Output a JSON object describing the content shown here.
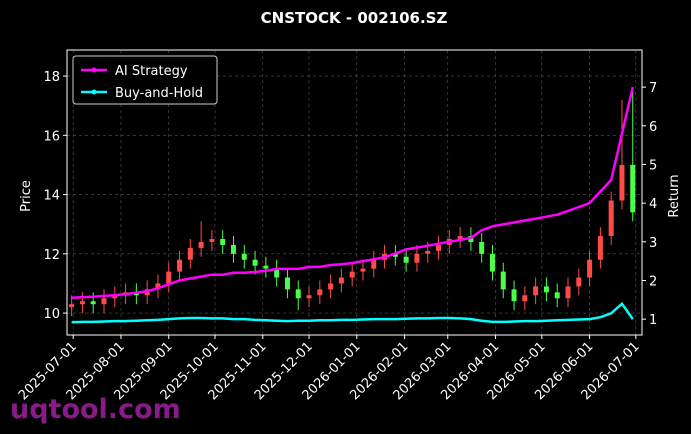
{
  "chart_data": {
    "type": "candlestick",
    "title": "CNSTOCK - 002106.SZ",
    "ylabel": "Price",
    "y2label": "Return",
    "watermark": "uqtool.com",
    "x": [
      "2025-06-30",
      "2025-07-07",
      "2025-07-14",
      "2025-07-21",
      "2025-07-28",
      "2025-08-04",
      "2025-08-11",
      "2025-08-18",
      "2025-08-25",
      "2025-09-01",
      "2025-09-08",
      "2025-09-15",
      "2025-09-22",
      "2025-09-29",
      "2025-10-06",
      "2025-10-13",
      "2025-10-20",
      "2025-10-27",
      "2025-11-03",
      "2025-11-10",
      "2025-11-17",
      "2025-11-24",
      "2025-12-01",
      "2025-12-08",
      "2025-12-15",
      "2025-12-22",
      "2025-12-29",
      "2026-01-05",
      "2026-01-12",
      "2026-01-19",
      "2026-01-26",
      "2026-02-02",
      "2026-02-09",
      "2026-02-16",
      "2026-02-23",
      "2026-03-02",
      "2026-03-09",
      "2026-03-16",
      "2026-03-23",
      "2026-03-30",
      "2026-04-06",
      "2026-04-13",
      "2026-04-20",
      "2026-04-27",
      "2026-05-04",
      "2026-05-11",
      "2026-05-18",
      "2026-05-25",
      "2026-06-01",
      "2026-06-08",
      "2026-06-15",
      "2026-06-22",
      "2026-06-29"
    ],
    "open": [
      10.2,
      10.3,
      10.4,
      10.3,
      10.5,
      10.6,
      10.7,
      10.6,
      10.8,
      11.0,
      11.4,
      11.8,
      12.2,
      12.4,
      12.5,
      12.3,
      12.0,
      11.8,
      11.6,
      11.5,
      11.2,
      10.8,
      10.5,
      10.6,
      10.8,
      11.0,
      11.2,
      11.4,
      11.5,
      11.8,
      12.0,
      11.9,
      11.7,
      12.0,
      12.1,
      12.3,
      12.5,
      12.6,
      12.4,
      12.0,
      11.4,
      10.8,
      10.4,
      10.6,
      10.9,
      10.7,
      10.5,
      10.9,
      11.2,
      11.8,
      12.6,
      13.8,
      15.0
    ],
    "high": [
      10.6,
      10.7,
      10.7,
      10.8,
      10.9,
      11.0,
      11.0,
      11.1,
      11.3,
      11.7,
      12.1,
      12.5,
      13.1,
      12.8,
      12.8,
      12.6,
      12.3,
      12.1,
      11.9,
      11.8,
      11.5,
      11.1,
      10.9,
      11.1,
      11.3,
      11.5,
      11.7,
      11.8,
      12.1,
      12.3,
      12.3,
      12.2,
      12.3,
      12.4,
      12.6,
      12.8,
      12.9,
      12.9,
      12.7,
      12.3,
      11.7,
      11.1,
      10.9,
      11.2,
      11.2,
      11.0,
      11.2,
      11.5,
      12.1,
      12.9,
      14.1,
      17.2,
      17.5
    ],
    "low": [
      9.9,
      10.0,
      10.0,
      10.0,
      10.2,
      10.3,
      10.3,
      10.3,
      10.5,
      10.7,
      11.1,
      11.5,
      11.9,
      12.1,
      12.0,
      11.7,
      11.5,
      11.3,
      11.2,
      10.9,
      10.5,
      10.1,
      10.2,
      10.3,
      10.5,
      10.7,
      10.9,
      11.1,
      11.2,
      11.5,
      11.6,
      11.4,
      11.4,
      11.7,
      11.8,
      12.0,
      12.2,
      12.1,
      11.7,
      11.1,
      10.5,
      10.1,
      10.1,
      10.3,
      10.4,
      10.2,
      10.2,
      10.6,
      10.9,
      11.5,
      12.3,
      13.5,
      13.1
    ],
    "close": [
      10.3,
      10.4,
      10.3,
      10.5,
      10.6,
      10.7,
      10.6,
      10.8,
      11.0,
      11.4,
      11.8,
      12.2,
      12.4,
      12.5,
      12.3,
      12.0,
      11.8,
      11.6,
      11.5,
      11.2,
      10.8,
      10.5,
      10.6,
      10.8,
      11.0,
      11.2,
      11.4,
      11.5,
      11.8,
      12.0,
      11.9,
      11.7,
      12.0,
      12.1,
      12.3,
      12.5,
      12.6,
      12.4,
      12.0,
      11.4,
      10.8,
      10.4,
      10.6,
      10.9,
      10.7,
      10.5,
      10.9,
      11.2,
      11.8,
      12.6,
      13.8,
      15.0,
      13.4
    ],
    "up_color": "#ff4a4a",
    "down_color": "#4aff4a",
    "series": [
      {
        "name": "AI Strategy",
        "color": "#ff00ff",
        "axis": "y2",
        "values": [
          1.55,
          1.57,
          1.58,
          1.6,
          1.62,
          1.65,
          1.68,
          1.72,
          1.8,
          1.9,
          2.0,
          2.05,
          2.1,
          2.15,
          2.15,
          2.2,
          2.2,
          2.22,
          2.25,
          2.3,
          2.3,
          2.3,
          2.35,
          2.35,
          2.4,
          2.42,
          2.45,
          2.5,
          2.55,
          2.6,
          2.7,
          2.8,
          2.85,
          2.9,
          2.95,
          3.0,
          3.05,
          3.1,
          3.3,
          3.4,
          3.45,
          3.5,
          3.55,
          3.6,
          3.65,
          3.7,
          3.8,
          3.9,
          4.0,
          4.3,
          4.6,
          5.8,
          7.0
        ]
      },
      {
        "name": "Buy-and-Hold",
        "color": "#00ffff",
        "axis": "y2",
        "values": [
          0.92,
          0.93,
          0.93,
          0.94,
          0.95,
          0.95,
          0.96,
          0.97,
          0.98,
          1.0,
          1.02,
          1.03,
          1.03,
          1.02,
          1.02,
          1.0,
          1.0,
          0.98,
          0.97,
          0.96,
          0.95,
          0.96,
          0.96,
          0.97,
          0.97,
          0.98,
          0.98,
          0.99,
          1.0,
          1.0,
          1.0,
          1.01,
          1.02,
          1.02,
          1.03,
          1.03,
          1.02,
          1.0,
          0.96,
          0.93,
          0.93,
          0.94,
          0.95,
          0.95,
          0.96,
          0.97,
          0.98,
          0.99,
          1.0,
          1.05,
          1.15,
          1.4,
          1.0
        ]
      }
    ],
    "xlim": [
      "2025-06-27",
      "2026-07-05"
    ],
    "xticks": [
      "2025-07-01",
      "2025-08-01",
      "2025-09-01",
      "2025-10-01",
      "2025-11-01",
      "2025-12-01",
      "2026-01-01",
      "2026-02-01",
      "2026-03-01",
      "2026-04-01",
      "2026-05-01",
      "2026-06-01",
      "2026-07-01"
    ],
    "ylim": [
      9.26,
      18.88
    ],
    "yticks": [
      10,
      12,
      14,
      16,
      18
    ],
    "y2lim": [
      0.59,
      7.96
    ],
    "y2ticks": [
      1,
      2,
      3,
      4,
      5,
      6,
      7
    ],
    "grid": true,
    "legend": "upper left"
  }
}
